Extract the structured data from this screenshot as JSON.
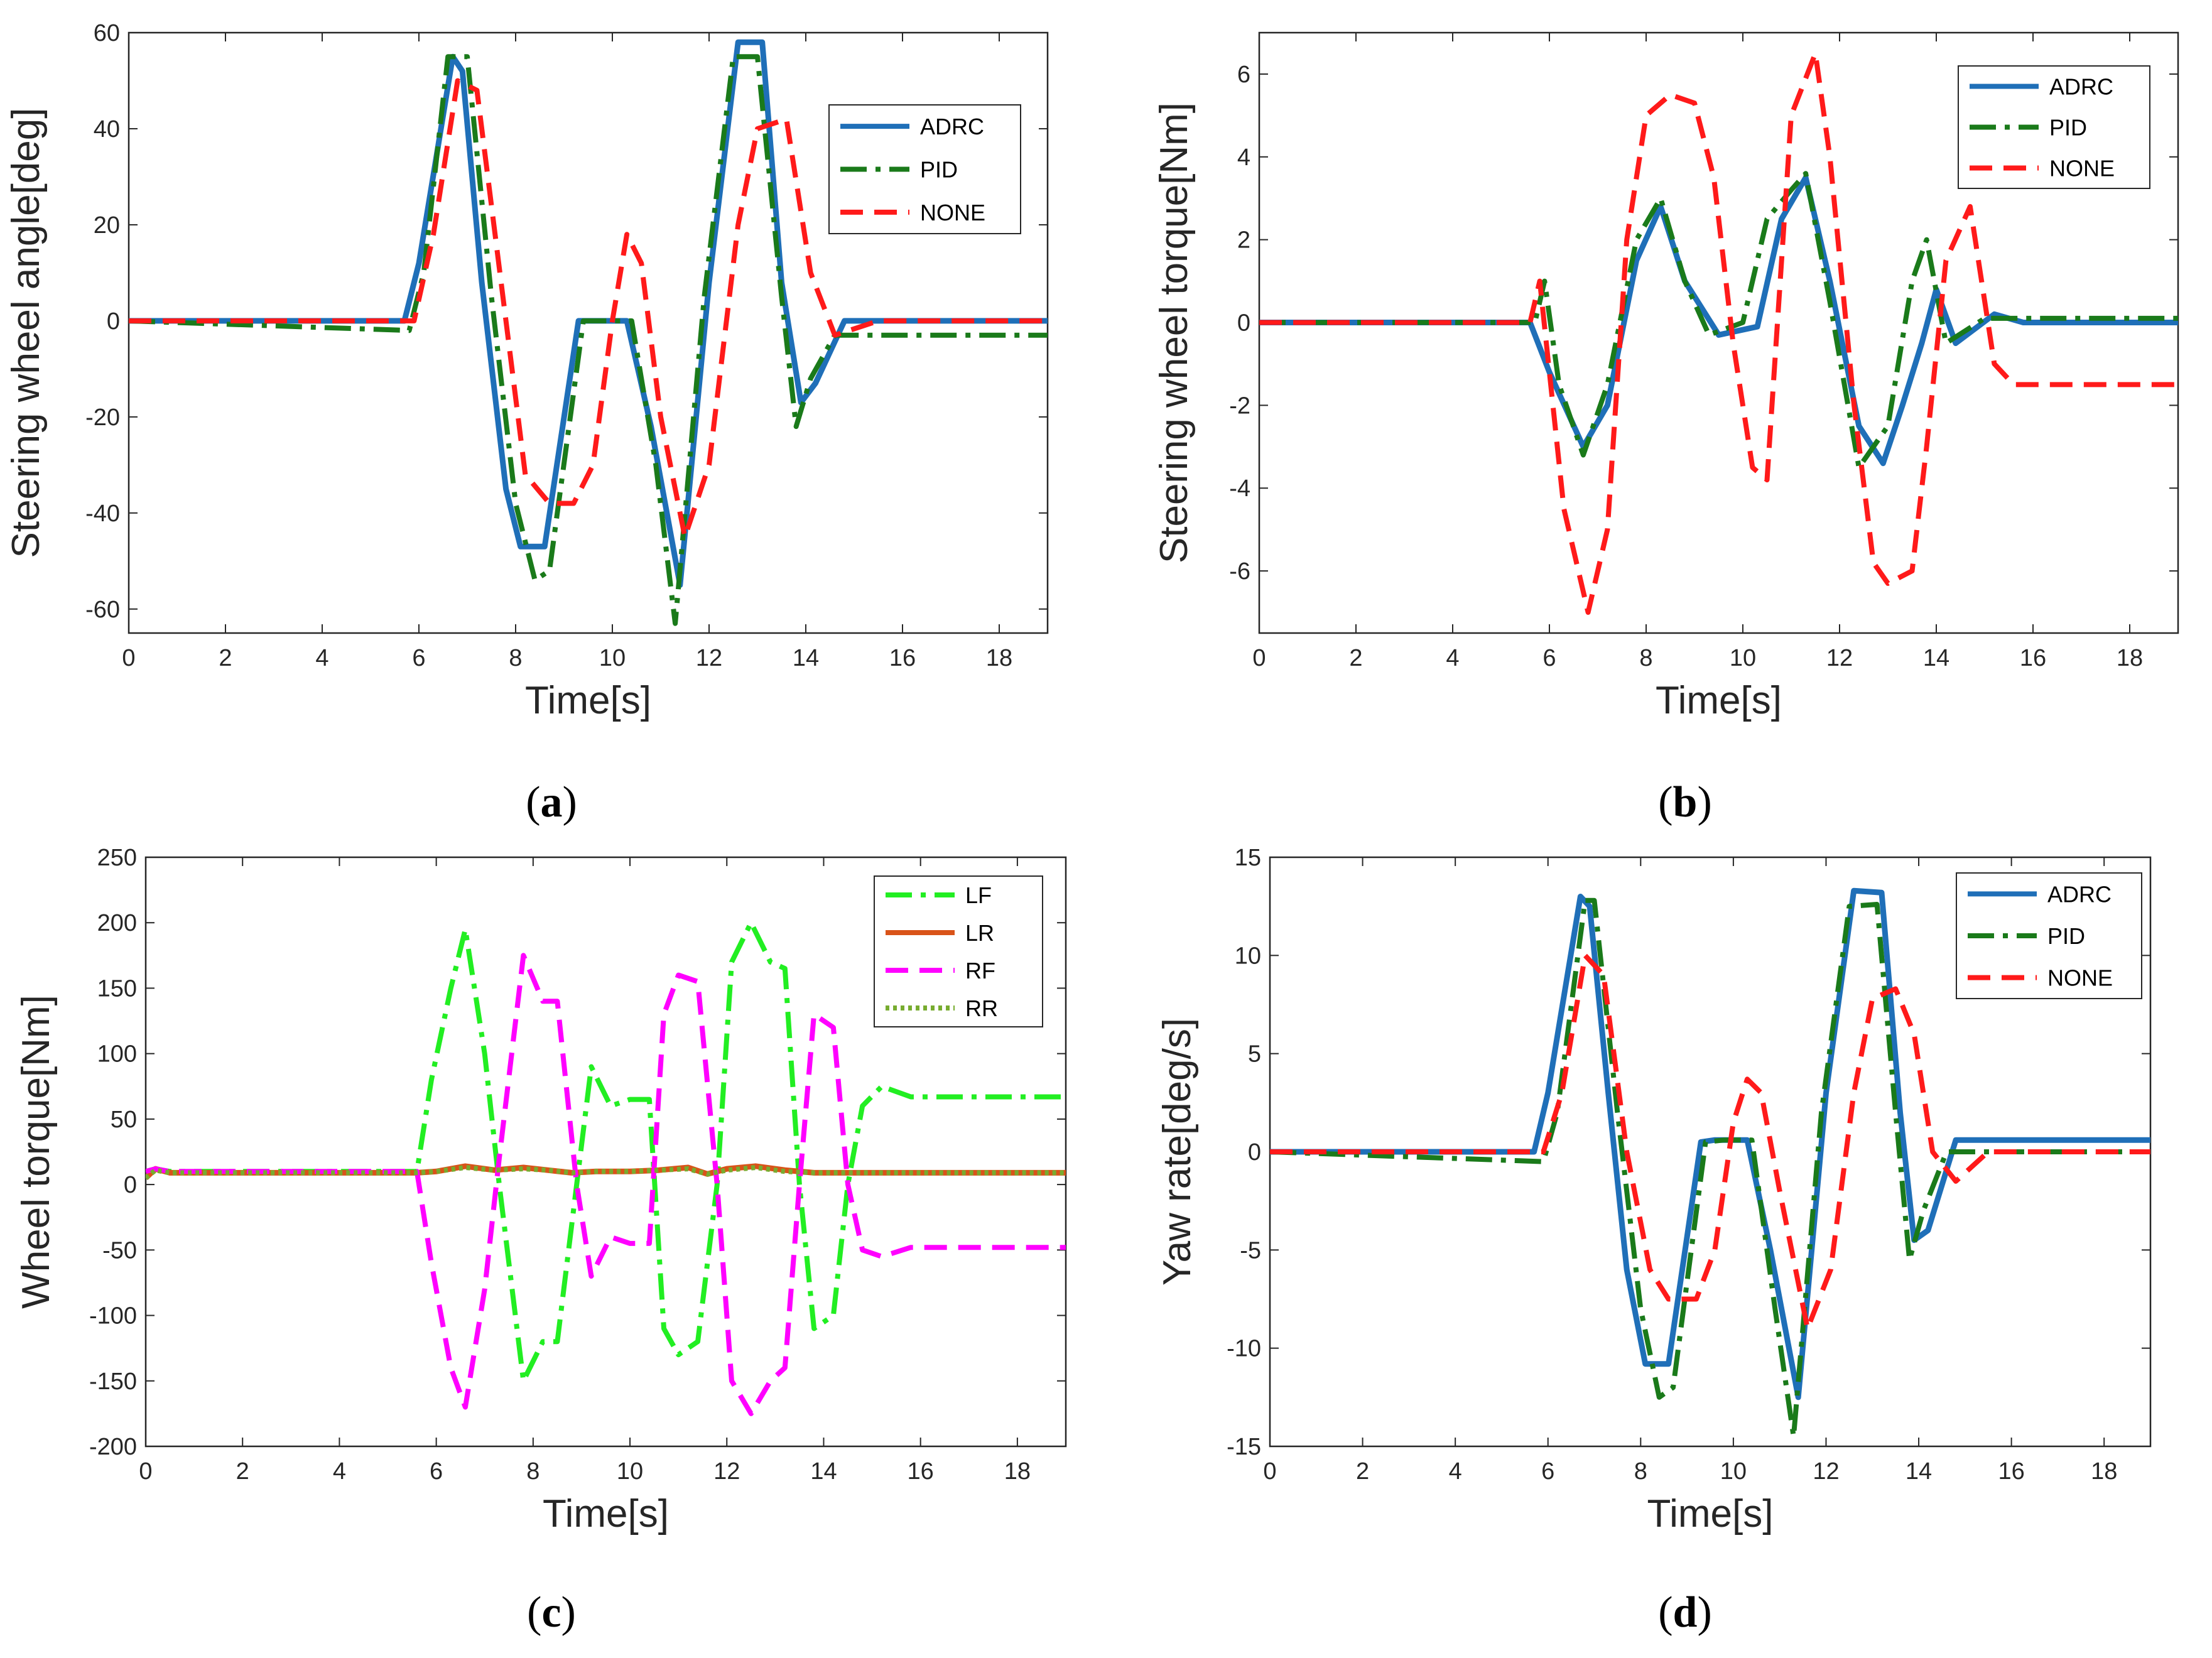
{
  "colors": {
    "adrc": "#1f6fb8",
    "pid": "#1a7a1a",
    "none": "#ff1a1a",
    "lf": "#22ee22",
    "lr": "#d95319",
    "rf": "#ff00ff",
    "rr": "#77ac30",
    "axis": "#262626"
  },
  "chart_data": [
    {
      "id": "a",
      "caption": "a",
      "type": "line",
      "xlabel": "Time[s]",
      "ylabel": "Steering wheel angle[deg]",
      "xlim": [
        0,
        19
      ],
      "ylim": [
        -65,
        60
      ],
      "xticks": [
        0,
        2,
        4,
        6,
        8,
        10,
        12,
        14,
        16,
        18
      ],
      "yticks": [
        -60,
        -40,
        -20,
        0,
        20,
        40,
        60
      ],
      "grid": false,
      "legend": "top-right",
      "series": [
        {
          "name": "ADRC",
          "color": "#1f6fb8",
          "style": "solid",
          "x": [
            0,
            5.7,
            6.0,
            6.7,
            6.9,
            7.3,
            7.8,
            8.1,
            8.6,
            9.3,
            9.7,
            10.3,
            10.8,
            11.4,
            12.0,
            12.6,
            13.1,
            13.5,
            13.9,
            14.2,
            14.8,
            19
          ],
          "y": [
            0,
            0,
            12,
            55,
            52,
            8,
            -35,
            -47,
            -47,
            0,
            0,
            0,
            -22,
            -55,
            8,
            58,
            58,
            8,
            -17,
            -13,
            0,
            0
          ]
        },
        {
          "name": "PID",
          "color": "#1a7a1a",
          "style": "dashdot",
          "x": [
            0,
            5.8,
            6.1,
            6.6,
            7.0,
            7.5,
            8.0,
            8.4,
            8.7,
            9.4,
            9.8,
            10.4,
            10.9,
            11.3,
            11.9,
            12.5,
            13.0,
            13.5,
            13.8,
            14.1,
            14.6,
            19
          ],
          "y": [
            0,
            -2,
            10,
            55,
            55,
            5,
            -38,
            -54,
            -52,
            0,
            0,
            0,
            -30,
            -63,
            5,
            55,
            55,
            5,
            -22,
            -12,
            -3,
            -3
          ]
        },
        {
          "name": "NONE",
          "color": "#ff1a1a",
          "style": "dashed",
          "x": [
            0,
            5.9,
            6.3,
            6.8,
            7.2,
            7.8,
            8.2,
            8.7,
            9.2,
            9.6,
            10.0,
            10.3,
            10.6,
            11.0,
            11.5,
            12.0,
            12.6,
            13.0,
            13.6,
            14.1,
            14.6,
            15.5,
            19
          ],
          "y": [
            0,
            0,
            18,
            50,
            48,
            0,
            -32,
            -38,
            -38,
            -30,
            0,
            18,
            12,
            -20,
            -45,
            -30,
            20,
            40,
            42,
            10,
            -3,
            0,
            0
          ]
        }
      ]
    },
    {
      "id": "b",
      "caption": "b",
      "type": "line",
      "xlabel": "Time[s]",
      "ylabel": "Steering wheel torque[Nm]",
      "xlim": [
        0,
        19
      ],
      "ylim": [
        -7.5,
        7
      ],
      "xticks": [
        0,
        2,
        4,
        6,
        8,
        10,
        12,
        14,
        16,
        18
      ],
      "yticks": [
        -6,
        -4,
        -2,
        0,
        2,
        4,
        6
      ],
      "grid": false,
      "legend": "top-right",
      "series": [
        {
          "name": "ADRC",
          "color": "#1f6fb8",
          "style": "solid",
          "x": [
            0,
            5.6,
            6.0,
            6.7,
            7.2,
            7.8,
            8.3,
            8.8,
            9.5,
            10.3,
            10.8,
            11.3,
            11.8,
            12.4,
            12.9,
            13.3,
            13.7,
            14.0,
            14.4,
            15.2,
            15.8,
            19
          ],
          "y": [
            0,
            0,
            -1.2,
            -3.0,
            -2.0,
            1.5,
            2.8,
            1.0,
            -0.3,
            -0.1,
            2.5,
            3.5,
            1.0,
            -2.5,
            -3.4,
            -2.0,
            -0.5,
            0.8,
            -0.5,
            0.2,
            0,
            0
          ]
        },
        {
          "name": "PID",
          "color": "#1a7a1a",
          "style": "dashdot",
          "x": [
            0,
            5.7,
            5.9,
            6.2,
            6.7,
            7.2,
            7.8,
            8.3,
            8.8,
            9.3,
            10.0,
            10.5,
            11.0,
            11.3,
            11.8,
            12.4,
            13.0,
            13.5,
            13.8,
            14.2,
            15.0,
            19
          ],
          "y": [
            0,
            0,
            1.0,
            -1.5,
            -3.2,
            -1.5,
            2.0,
            3.0,
            1.0,
            -0.3,
            0,
            2.5,
            3.2,
            3.6,
            0.5,
            -3.5,
            -2.5,
            1.0,
            2.0,
            -0.5,
            0.1,
            0.1
          ]
        },
        {
          "name": "NONE",
          "color": "#ff1a1a",
          "style": "dashed",
          "x": [
            0,
            5.6,
            5.8,
            6.3,
            6.8,
            7.2,
            7.6,
            8.0,
            8.5,
            9.0,
            9.4,
            9.8,
            10.2,
            10.5,
            11.0,
            11.5,
            11.8,
            12.3,
            12.7,
            13.0,
            13.5,
            13.8,
            14.2,
            14.7,
            15.2,
            15.6,
            19
          ],
          "y": [
            0,
            0,
            1.0,
            -4.5,
            -7.0,
            -5.0,
            2.0,
            5.0,
            5.5,
            5.3,
            3.5,
            -0.5,
            -3.5,
            -3.8,
            5.0,
            6.5,
            4.0,
            -2.0,
            -5.8,
            -6.3,
            -6.0,
            -3.0,
            1.5,
            2.8,
            -1.0,
            -1.5,
            -1.5
          ]
        }
      ]
    },
    {
      "id": "c",
      "caption": "c",
      "type": "line",
      "xlabel": "Time[s]",
      "ylabel": "Wheel torque[Nm]",
      "xlim": [
        0,
        19
      ],
      "ylim": [
        -200,
        250
      ],
      "xticks": [
        0,
        2,
        4,
        6,
        8,
        10,
        12,
        14,
        16,
        18
      ],
      "yticks": [
        -200,
        -150,
        -100,
        -50,
        0,
        50,
        100,
        150,
        200,
        250
      ],
      "grid": false,
      "legend": "top-right",
      "series": [
        {
          "name": "LF",
          "color": "#22ee22",
          "style": "dashdot",
          "x": [
            0,
            0.2,
            0.5,
            5.6,
            5.9,
            6.3,
            6.6,
            7.0,
            7.3,
            7.8,
            8.2,
            8.5,
            8.9,
            9.2,
            9.6,
            10.0,
            10.4,
            10.7,
            11.0,
            11.4,
            11.8,
            12.1,
            12.5,
            12.9,
            13.2,
            13.5,
            13.8,
            14.2,
            14.5,
            14.8,
            15.2,
            15.8,
            19
          ],
          "y": [
            10,
            12,
            10,
            10,
            80,
            150,
            195,
            100,
            0,
            -150,
            -120,
            -120,
            0,
            90,
            60,
            65,
            65,
            -110,
            -130,
            -120,
            0,
            170,
            200,
            170,
            165,
            0,
            -110,
            -100,
            0,
            60,
            75,
            67,
            67
          ]
        },
        {
          "name": "LR",
          "color": "#d95319",
          "style": "solid",
          "x": [
            0,
            0.2,
            0.5,
            5.6,
            6.0,
            6.6,
            7.2,
            7.8,
            8.3,
            8.8,
            9.3,
            10.0,
            10.6,
            11.2,
            11.6,
            12.0,
            12.6,
            13.2,
            13.8,
            14.3,
            19
          ],
          "y": [
            5,
            12,
            9,
            9,
            10,
            14,
            11,
            13,
            11,
            9,
            10,
            10,
            11,
            13,
            8,
            12,
            14,
            11,
            9,
            9,
            9
          ]
        },
        {
          "name": "RF",
          "color": "#ff00ff",
          "style": "dashed",
          "x": [
            0,
            0.2,
            0.5,
            5.6,
            5.9,
            6.3,
            6.6,
            7.0,
            7.3,
            7.8,
            8.2,
            8.5,
            8.9,
            9.2,
            9.6,
            10.0,
            10.4,
            10.7,
            11.0,
            11.4,
            11.8,
            12.1,
            12.5,
            12.9,
            13.2,
            13.5,
            13.8,
            14.2,
            14.5,
            14.8,
            15.2,
            15.8,
            19
          ],
          "y": [
            10,
            12,
            10,
            10,
            -60,
            -140,
            -170,
            -80,
            20,
            175,
            140,
            140,
            0,
            -70,
            -40,
            -45,
            -45,
            130,
            160,
            155,
            0,
            -150,
            -175,
            -150,
            -140,
            0,
            130,
            120,
            0,
            -50,
            -55,
            -48,
            -48
          ]
        },
        {
          "name": "RR",
          "color": "#77ac30",
          "style": "dotted",
          "x": [
            0,
            0.2,
            0.5,
            5.6,
            6.0,
            6.6,
            7.2,
            7.8,
            8.3,
            8.8,
            9.3,
            10.0,
            10.6,
            11.2,
            11.6,
            12.0,
            12.6,
            13.2,
            13.8,
            14.3,
            19
          ],
          "y": [
            5,
            11,
            9,
            9,
            10,
            13,
            11,
            12,
            11,
            9,
            10,
            10,
            11,
            12,
            8,
            11,
            13,
            10,
            9,
            9,
            9
          ]
        }
      ]
    },
    {
      "id": "d",
      "caption": "d",
      "type": "line",
      "xlabel": "Time[s]",
      "ylabel": "Yaw rate[deg/s]",
      "xlim": [
        0,
        19
      ],
      "ylim": [
        -15,
        15
      ],
      "xticks": [
        0,
        2,
        4,
        6,
        8,
        10,
        12,
        14,
        16,
        18
      ],
      "yticks": [
        -15,
        -10,
        -5,
        0,
        5,
        10,
        15
      ],
      "grid": false,
      "legend": "top-right",
      "series": [
        {
          "name": "ADRC",
          "color": "#1f6fb8",
          "style": "solid",
          "x": [
            0,
            5.7,
            6.0,
            6.7,
            6.9,
            7.3,
            7.7,
            8.1,
            8.6,
            9.3,
            9.6,
            10.3,
            10.8,
            11.4,
            12.0,
            12.6,
            13.2,
            13.6,
            13.9,
            14.2,
            14.8,
            19
          ],
          "y": [
            0,
            0,
            3,
            13,
            12.5,
            3,
            -6,
            -10.8,
            -10.8,
            0.5,
            0.6,
            0.6,
            -5,
            -12.5,
            3,
            13.3,
            13.2,
            2,
            -4.5,
            -4,
            0.6,
            0.6
          ]
        },
        {
          "name": "PID",
          "color": "#1a7a1a",
          "style": "dashdot",
          "x": [
            0,
            5.9,
            6.2,
            6.8,
            7.0,
            7.5,
            8.0,
            8.4,
            8.7,
            9.4,
            9.8,
            10.4,
            10.9,
            11.3,
            11.9,
            12.5,
            13.1,
            13.5,
            13.8,
            14.1,
            14.6,
            19
          ],
          "y": [
            0,
            -0.5,
            2,
            12.8,
            12.8,
            2,
            -8,
            -12.5,
            -12,
            0.5,
            0.6,
            0.6,
            -8,
            -14.5,
            2,
            12.5,
            12.6,
            2,
            -5.5,
            -3,
            0,
            0
          ]
        },
        {
          "name": "NONE",
          "color": "#ff1a1a",
          "style": "dashed",
          "x": [
            0,
            5.9,
            6.3,
            6.8,
            7.2,
            7.7,
            8.2,
            8.6,
            9.2,
            9.6,
            10.0,
            10.3,
            10.6,
            11.0,
            11.6,
            12.1,
            12.6,
            13.0,
            13.5,
            13.9,
            14.3,
            14.8,
            15.5,
            19
          ],
          "y": [
            0,
            0,
            3,
            10,
            9,
            0,
            -6,
            -7.5,
            -7.5,
            -5,
            1.5,
            3.7,
            3,
            -2,
            -9,
            -6,
            3,
            7.8,
            8.3,
            6,
            0,
            -1.5,
            0,
            0
          ]
        }
      ]
    }
  ]
}
